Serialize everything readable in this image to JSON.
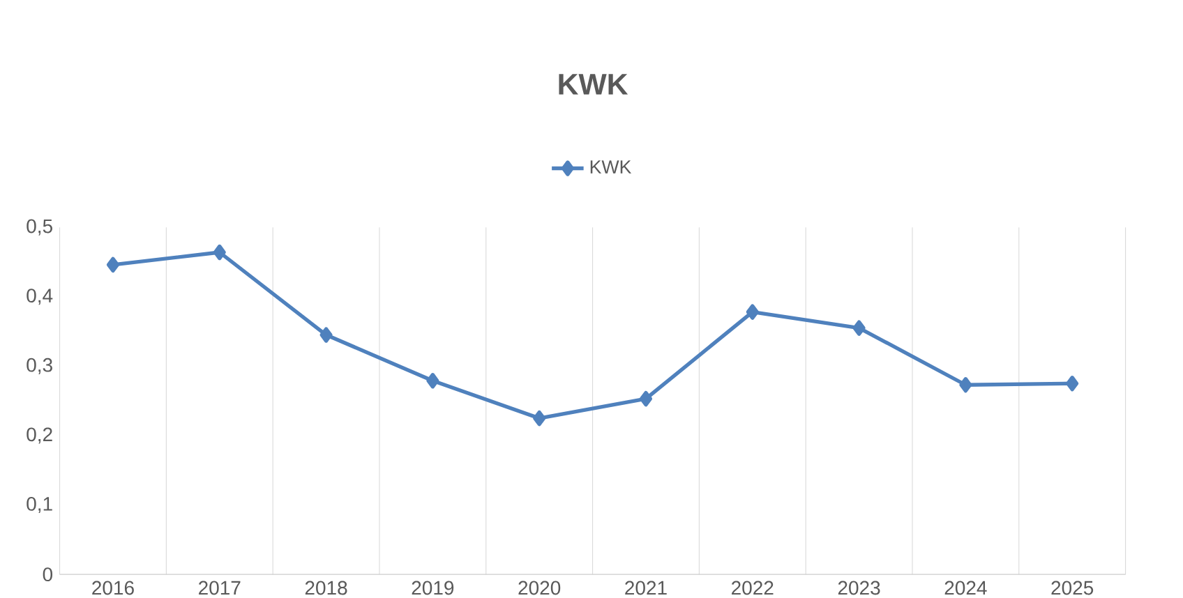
{
  "chart_data": {
    "type": "line",
    "title": "KWK",
    "categories": [
      "2016",
      "2017",
      "2018",
      "2019",
      "2020",
      "2021",
      "2022",
      "2023",
      "2024",
      "2025"
    ],
    "series": [
      {
        "name": "KWK",
        "color": "#4f81bd",
        "values": [
          0.446,
          0.464,
          0.345,
          0.279,
          0.225,
          0.253,
          0.378,
          0.355,
          0.273,
          0.275
        ]
      }
    ],
    "ylim": [
      0,
      0.5
    ],
    "yticks": [
      0,
      {
        "value": 0.1,
        "label": "0,1"
      },
      {
        "value": 0.2,
        "label": "0,2"
      },
      {
        "value": 0.3,
        "label": "0,3"
      },
      {
        "value": 0.4,
        "label": "0,4"
      },
      {
        "value": 0.5,
        "label": "0,5"
      }
    ],
    "grid": "x",
    "legend": "top",
    "marker": "diamond",
    "line_style": "solid"
  }
}
